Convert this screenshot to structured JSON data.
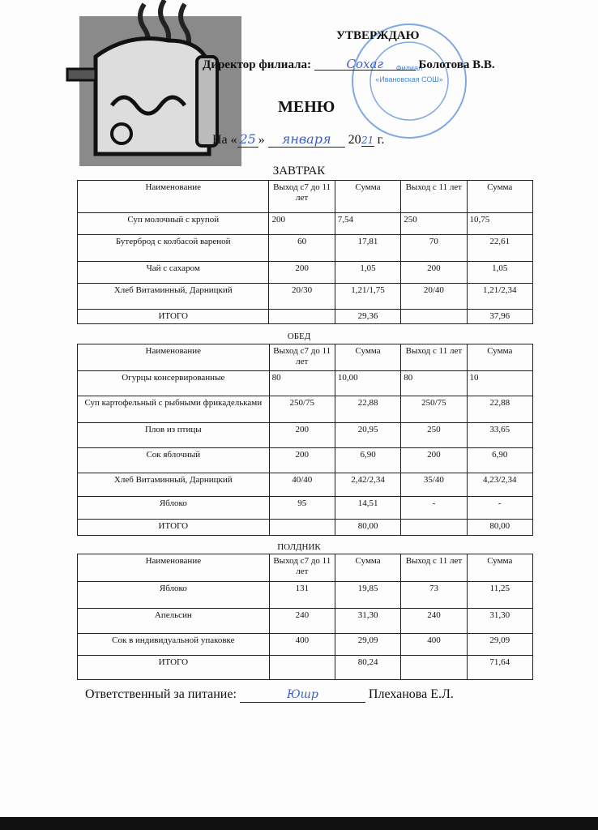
{
  "approval": {
    "title": "УТВЕРЖДАЮ",
    "director_label": "Директор филиала:",
    "director_name": "Болотова В.В.",
    "stamp_text": "«Ивановская СОШ»",
    "stamp_prefix": "Филиал"
  },
  "menu_title": "МЕНЮ",
  "date": {
    "prefix": "На «",
    "day": "25",
    "mid": "»",
    "month": "января",
    "year_prefix": "20",
    "year_suffix": "21",
    "suffix": "г."
  },
  "columns": [
    "Наименование",
    "Выход с7 до 11 лет",
    "Сумма",
    "Выход с 11 лет",
    "Сумма"
  ],
  "sections": [
    {
      "title": "ЗАВТРАК",
      "rows": [
        [
          "Суп молочный с крупой",
          "200",
          "7,54",
          "250",
          "10,75"
        ],
        [
          "Бутерброд с колбасой вареной",
          "60",
          "17,81",
          "70",
          "22,61"
        ],
        [
          "Чай с сахаром",
          "200",
          "1,05",
          "200",
          "1,05"
        ],
        [
          "Хлеб Витаминный, Дарницкий",
          "20/30",
          "1,21/1,75",
          "20/40",
          "1,21/2,34"
        ],
        [
          "ИТОГО",
          "",
          "29,36",
          "",
          "37,96"
        ]
      ]
    },
    {
      "title": "ОБЕД",
      "rows": [
        [
          "Огурцы консервированные",
          "80",
          "10,00",
          "80",
          "10"
        ],
        [
          "Суп картофельный с рыбными фрикадельками",
          "250/75",
          "22,88",
          "250/75",
          "22,88"
        ],
        [
          "Плов из птицы",
          "200",
          "20,95",
          "250",
          "33,65"
        ],
        [
          "Сок яблочный",
          "200",
          "6,90",
          "200",
          "6,90"
        ],
        [
          "Хлеб Витаминный, Дарницкий",
          "40/40",
          "2,42/2,34",
          "35/40",
          "4,23/2,34"
        ],
        [
          "Яблоко",
          "95",
          "14,51",
          "-",
          "-"
        ],
        [
          "ИТОГО",
          "",
          "80,00",
          "",
          "80,00"
        ]
      ]
    },
    {
      "title": "ПОЛДНИК",
      "rows": [
        [
          "Яблоко",
          "131",
          "19,85",
          "73",
          "11,25"
        ],
        [
          "Апельсин",
          "240",
          "31,30",
          "240",
          "31,30"
        ],
        [
          "Сок в индивидуальной упаковке",
          "400",
          "29,09",
          "400",
          "29,09"
        ],
        [
          "ИТОГО",
          "",
          "80,24",
          "",
          "71,64"
        ]
      ]
    }
  ],
  "responsible": {
    "label": "Ответственный за питание:",
    "name": "Плеханова Е.Л."
  },
  "colors": {
    "ink": "#111111",
    "pen": "#3b5fc4",
    "stamp": "#4a86d8"
  }
}
